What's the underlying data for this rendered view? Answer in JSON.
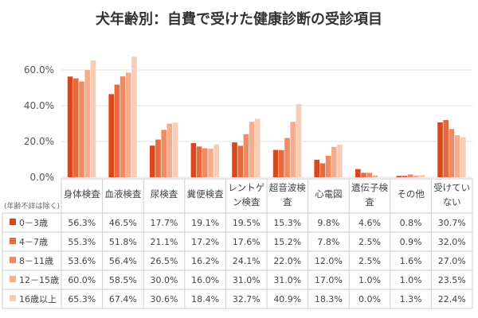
{
  "title": "犬年齢別：自費で受けた健康診断の受診項目",
  "row_header_note": "(年齢不詳は除く)",
  "chart_data": {
    "type": "bar",
    "title": "犬年齢別：自費で受けた健康診断の受診項目",
    "categories": [
      [
        "身体検査"
      ],
      [
        "血液検査"
      ],
      [
        "尿検査"
      ],
      [
        "糞便検査"
      ],
      [
        "レントゲ",
        "ン検査"
      ],
      [
        "超音波検",
        "査"
      ],
      [
        "心電図"
      ],
      [
        "遺伝子検",
        "査"
      ],
      [
        "その他"
      ],
      [
        "受けてい",
        "ない"
      ]
    ],
    "series": [
      {
        "name": "0－3歳",
        "color": "#d9481c",
        "values": [
          56.3,
          46.5,
          17.7,
          19.1,
          19.5,
          15.3,
          9.8,
          4.6,
          0.8,
          30.7
        ]
      },
      {
        "name": "4－7歳",
        "color": "#e56a3e",
        "values": [
          55.3,
          51.8,
          21.1,
          17.2,
          17.6,
          15.2,
          7.8,
          2.5,
          0.9,
          32.0
        ]
      },
      {
        "name": "8－11歳",
        "color": "#ee8b63",
        "values": [
          53.6,
          56.4,
          26.5,
          16.2,
          24.1,
          22.0,
          12.0,
          2.5,
          1.6,
          27.0
        ]
      },
      {
        "name": "12－15歳",
        "color": "#f4ae8e",
        "values": [
          60.0,
          58.5,
          30.0,
          16.0,
          31.0,
          31.0,
          17.0,
          1.0,
          1.0,
          23.5
        ]
      },
      {
        "name": "16歳以上",
        "color": "#f8cdb6",
        "values": [
          65.3,
          67.4,
          30.6,
          18.4,
          32.7,
          40.9,
          18.3,
          0.0,
          1.3,
          22.4
        ]
      }
    ],
    "y_ticks": [
      "0.0%",
      "20.0%",
      "40.0%",
      "60.0%"
    ],
    "ylim": [
      0,
      70
    ],
    "grid": true,
    "legend": "data table rows below chart"
  }
}
